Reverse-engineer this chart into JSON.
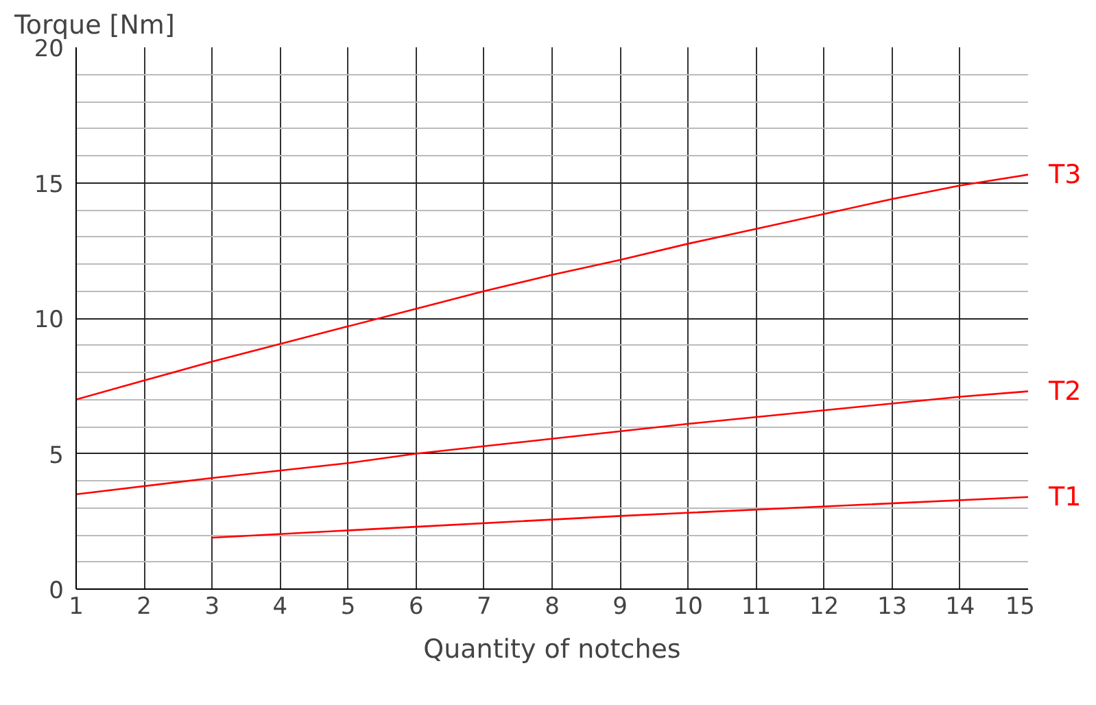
{
  "chart_data": {
    "type": "line",
    "ylabel": "Torque [Nm]",
    "xlabel": "Quantity of notches",
    "xlim": [
      1,
      15
    ],
    "ylim": [
      0,
      20
    ],
    "xticks": [
      1,
      2,
      3,
      4,
      5,
      6,
      7,
      8,
      9,
      10,
      11,
      12,
      13,
      14,
      15
    ],
    "yticks": [
      0,
      5,
      10,
      15,
      20
    ],
    "grid": true,
    "marker": "none",
    "line_style": "solid",
    "series": [
      {
        "name": "T3",
        "color": "#ff0000",
        "x": [
          1,
          2,
          3,
          4,
          5,
          6,
          7,
          8,
          9,
          10,
          11,
          12,
          13,
          14,
          15
        ],
        "values": [
          7.0,
          7.7,
          8.4,
          9.05,
          9.7,
          10.35,
          11.0,
          11.6,
          12.15,
          12.75,
          13.3,
          13.85,
          14.4,
          14.9,
          15.3
        ]
      },
      {
        "name": "T2",
        "color": "#ff0000",
        "x": [
          1,
          3,
          5,
          6,
          8,
          10,
          12,
          14,
          15
        ],
        "values": [
          3.5,
          4.1,
          4.65,
          5.0,
          5.55,
          6.1,
          6.6,
          7.1,
          7.3
        ]
      },
      {
        "name": "T1",
        "color": "#ff0000",
        "x": [
          3,
          6,
          9,
          12,
          15
        ],
        "values": [
          1.9,
          2.3,
          2.7,
          3.05,
          3.4
        ]
      }
    ]
  }
}
